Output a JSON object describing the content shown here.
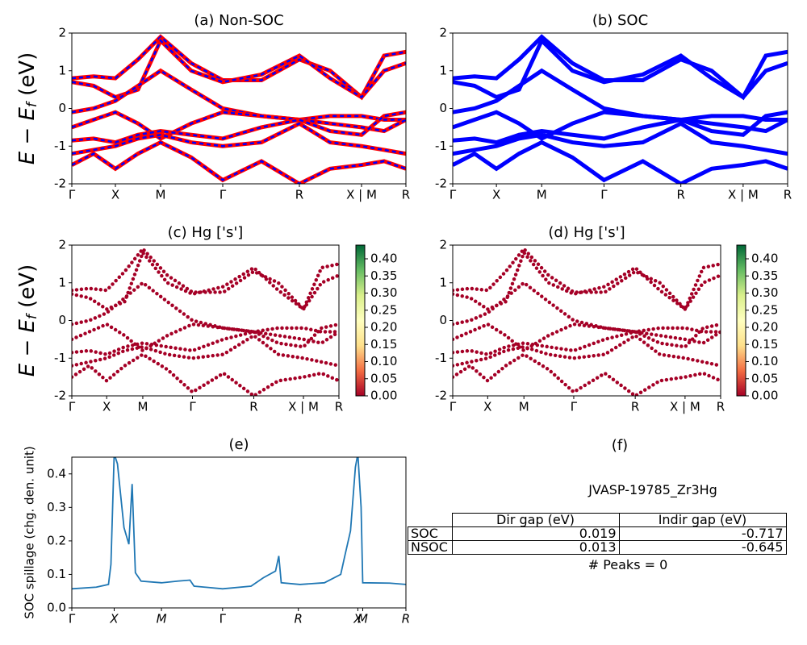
{
  "chart_data": [
    {
      "type": "band",
      "title": "(a) Non-SOC",
      "ylabel": [
        "E − E",
        "f",
        " (eV)"
      ],
      "colors": [
        "#ff0000",
        "#0000ff"
      ],
      "x": [
        0,
        0.27,
        0.54,
        0.82,
        1.1,
        1.48,
        1.87,
        2.35,
        2.82,
        3.2,
        3.59,
        3.87,
        4.14
      ],
      "bands": [
        [
          0.8,
          0.85,
          0.8,
          1.3,
          1.9,
          1.2,
          0.75,
          0.75,
          1.3,
          1.0,
          0.3,
          1.4,
          1.5
        ],
        [
          0.7,
          0.6,
          0.3,
          0.5,
          1.8,
          1.0,
          0.7,
          0.9,
          1.4,
          0.8,
          0.3,
          1.0,
          1.2
        ],
        [
          -0.1,
          0.0,
          0.2,
          0.6,
          1.0,
          0.5,
          0.0,
          -0.2,
          -0.3,
          -0.2,
          -0.2,
          -0.3,
          -0.3
        ],
        [
          -0.5,
          -0.3,
          -0.1,
          -0.4,
          -0.8,
          -0.4,
          -0.1,
          -0.2,
          -0.3,
          -0.4,
          -0.5,
          -0.6,
          -0.3
        ],
        [
          -0.85,
          -0.8,
          -0.9,
          -0.7,
          -0.6,
          -0.7,
          -0.8,
          -0.5,
          -0.3,
          -0.6,
          -0.7,
          -0.2,
          -0.1
        ],
        [
          -1.2,
          -1.1,
          -1.0,
          -0.8,
          -0.7,
          -0.9,
          -1.0,
          -0.9,
          -0.4,
          -0.9,
          -1.0,
          -1.1,
          -1.2
        ],
        [
          -1.5,
          -1.2,
          -1.6,
          -1.2,
          -0.9,
          -1.3,
          -1.9,
          -1.4,
          -2.0,
          -1.6,
          -1.5,
          -1.4,
          -1.6
        ]
      ],
      "xlim": [
        0,
        4.14
      ],
      "xticks": [
        {
          "value": 0,
          "label": "Γ"
        },
        {
          "value": 0.54,
          "label": "X"
        },
        {
          "value": 1.1,
          "label": "M"
        },
        {
          "value": 1.87,
          "label": "Γ"
        },
        {
          "value": 2.82,
          "label": "R"
        },
        {
          "value": 3.59,
          "label": "X | M"
        },
        {
          "value": 4.14,
          "label": "R"
        }
      ],
      "ylim": [
        -2,
        2
      ],
      "yticks": [
        -2,
        -1,
        0,
        1,
        2
      ]
    },
    {
      "type": "band",
      "title": "(b) SOC",
      "colors": [
        "#0000ff"
      ],
      "x": [
        0,
        0.27,
        0.54,
        0.82,
        1.1,
        1.48,
        1.87,
        2.35,
        2.82,
        3.2,
        3.59,
        3.87,
        4.14
      ],
      "bands": [
        [
          0.8,
          0.85,
          0.8,
          1.3,
          1.9,
          1.2,
          0.75,
          0.75,
          1.3,
          1.0,
          0.3,
          1.4,
          1.5
        ],
        [
          0.7,
          0.6,
          0.3,
          0.5,
          1.8,
          1.0,
          0.7,
          0.9,
          1.4,
          0.8,
          0.3,
          1.0,
          1.2
        ],
        [
          -0.1,
          0.0,
          0.2,
          0.6,
          1.0,
          0.5,
          0.0,
          -0.2,
          -0.3,
          -0.2,
          -0.2,
          -0.3,
          -0.3
        ],
        [
          -0.5,
          -0.3,
          -0.1,
          -0.4,
          -0.8,
          -0.4,
          -0.1,
          -0.2,
          -0.3,
          -0.4,
          -0.5,
          -0.6,
          -0.3
        ],
        [
          -0.85,
          -0.8,
          -0.9,
          -0.7,
          -0.6,
          -0.7,
          -0.8,
          -0.5,
          -0.3,
          -0.6,
          -0.7,
          -0.2,
          -0.1
        ],
        [
          -1.2,
          -1.1,
          -1.0,
          -0.8,
          -0.7,
          -0.9,
          -1.0,
          -0.9,
          -0.4,
          -0.9,
          -1.0,
          -1.1,
          -1.2
        ],
        [
          -1.5,
          -1.2,
          -1.6,
          -1.2,
          -0.9,
          -1.3,
          -1.9,
          -1.4,
          -2.0,
          -1.6,
          -1.5,
          -1.4,
          -1.6
        ]
      ],
      "xlim": [
        0,
        4.14
      ],
      "xticks": [
        {
          "value": 0,
          "label": "Γ"
        },
        {
          "value": 0.54,
          "label": "X"
        },
        {
          "value": 1.1,
          "label": "M"
        },
        {
          "value": 1.87,
          "label": "Γ"
        },
        {
          "value": 2.82,
          "label": "R"
        },
        {
          "value": 3.59,
          "label": "X | M"
        },
        {
          "value": 4.14,
          "label": "R"
        }
      ],
      "ylim": [
        -2,
        2
      ],
      "yticks": [
        -2,
        -1,
        0,
        1,
        2
      ]
    },
    {
      "type": "projected",
      "title": "(c)  Hg ['s']",
      "ylabel": [
        "E − E",
        "f",
        " (eV)"
      ],
      "colors": [
        "#a50026"
      ],
      "x": [
        0,
        0.27,
        0.54,
        0.82,
        1.1,
        1.48,
        1.87,
        2.35,
        2.82,
        3.2,
        3.59,
        3.87,
        4.14
      ],
      "bands": [
        [
          0.8,
          0.85,
          0.8,
          1.3,
          1.9,
          1.2,
          0.75,
          0.75,
          1.3,
          1.0,
          0.3,
          1.4,
          1.5
        ],
        [
          0.7,
          0.6,
          0.3,
          0.5,
          1.8,
          1.0,
          0.7,
          0.9,
          1.4,
          0.8,
          0.3,
          1.0,
          1.2
        ],
        [
          -0.1,
          0.0,
          0.2,
          0.6,
          1.0,
          0.5,
          0.0,
          -0.2,
          -0.3,
          -0.2,
          -0.2,
          -0.3,
          -0.3
        ],
        [
          -0.5,
          -0.3,
          -0.1,
          -0.4,
          -0.8,
          -0.4,
          -0.1,
          -0.2,
          -0.3,
          -0.4,
          -0.5,
          -0.6,
          -0.3
        ],
        [
          -0.85,
          -0.8,
          -0.9,
          -0.7,
          -0.6,
          -0.7,
          -0.8,
          -0.5,
          -0.3,
          -0.6,
          -0.7,
          -0.2,
          -0.1
        ],
        [
          -1.2,
          -1.1,
          -1.0,
          -0.8,
          -0.7,
          -0.9,
          -1.0,
          -0.9,
          -0.4,
          -0.9,
          -1.0,
          -1.1,
          -1.2
        ],
        [
          -1.5,
          -1.2,
          -1.6,
          -1.2,
          -0.9,
          -1.3,
          -1.9,
          -1.4,
          -2.0,
          -1.6,
          -1.5,
          -1.4,
          -1.6
        ]
      ],
      "xlim": [
        0,
        4.14
      ],
      "xticks": [
        {
          "value": 0,
          "label": "Γ"
        },
        {
          "value": 0.54,
          "label": "X"
        },
        {
          "value": 1.1,
          "label": "M"
        },
        {
          "value": 1.87,
          "label": "Γ"
        },
        {
          "value": 2.82,
          "label": "R"
        },
        {
          "value": 3.59,
          "label": "X | M"
        },
        {
          "value": 4.14,
          "label": "R"
        }
      ],
      "ylim": [
        -2,
        2
      ],
      "yticks": [
        -2,
        -1,
        0,
        1,
        2
      ],
      "colorbar": {
        "colors": [
          "#a50026",
          "#f46d43",
          "#fee08b",
          "#ffffbf",
          "#d9ef8b",
          "#66bd63",
          "#006837"
        ],
        "lim": [
          0,
          0.44
        ],
        "ticks": [
          {
            "value": 0,
            "label": "0.00"
          },
          {
            "value": 0.05,
            "label": "0.05"
          },
          {
            "value": 0.1,
            "label": "0.10"
          },
          {
            "value": 0.15,
            "label": "0.15"
          },
          {
            "value": 0.2,
            "label": "0.20"
          },
          {
            "value": 0.25,
            "label": "0.25"
          },
          {
            "value": 0.3,
            "label": "0.30"
          },
          {
            "value": 0.35,
            "label": "0.35"
          },
          {
            "value": 0.4,
            "label": "0.40"
          }
        ]
      }
    },
    {
      "type": "projected",
      "title": "(d) Hg ['s']",
      "colors": [
        "#a50026"
      ],
      "x": [
        0,
        0.27,
        0.54,
        0.82,
        1.1,
        1.48,
        1.87,
        2.35,
        2.82,
        3.2,
        3.59,
        3.87,
        4.14
      ],
      "bands": [
        [
          0.8,
          0.85,
          0.8,
          1.3,
          1.9,
          1.2,
          0.75,
          0.75,
          1.3,
          1.0,
          0.3,
          1.4,
          1.5
        ],
        [
          0.7,
          0.6,
          0.3,
          0.5,
          1.8,
          1.0,
          0.7,
          0.9,
          1.4,
          0.8,
          0.3,
          1.0,
          1.2
        ],
        [
          -0.1,
          0.0,
          0.2,
          0.6,
          1.0,
          0.5,
          0.0,
          -0.2,
          -0.3,
          -0.2,
          -0.2,
          -0.3,
          -0.3
        ],
        [
          -0.5,
          -0.3,
          -0.1,
          -0.4,
          -0.8,
          -0.4,
          -0.1,
          -0.2,
          -0.3,
          -0.4,
          -0.5,
          -0.6,
          -0.3
        ],
        [
          -0.85,
          -0.8,
          -0.9,
          -0.7,
          -0.6,
          -0.7,
          -0.8,
          -0.5,
          -0.3,
          -0.6,
          -0.7,
          -0.2,
          -0.1
        ],
        [
          -1.2,
          -1.1,
          -1.0,
          -0.8,
          -0.7,
          -0.9,
          -1.0,
          -0.9,
          -0.4,
          -0.9,
          -1.0,
          -1.1,
          -1.2
        ],
        [
          -1.5,
          -1.2,
          -1.6,
          -1.2,
          -0.9,
          -1.3,
          -1.9,
          -1.4,
          -2.0,
          -1.6,
          -1.5,
          -1.4,
          -1.6
        ]
      ],
      "xlim": [
        0,
        4.14
      ],
      "xticks": [
        {
          "value": 0,
          "label": "Γ"
        },
        {
          "value": 0.54,
          "label": "X"
        },
        {
          "value": 1.1,
          "label": "M"
        },
        {
          "value": 1.87,
          "label": "Γ"
        },
        {
          "value": 2.82,
          "label": "R"
        },
        {
          "value": 3.59,
          "label": "X | M"
        },
        {
          "value": 4.14,
          "label": "R"
        }
      ],
      "ylim": [
        -2,
        2
      ],
      "yticks": [
        -2,
        -1,
        0,
        1,
        2
      ],
      "colorbar": {
        "colors": [
          "#a50026",
          "#f46d43",
          "#fee08b",
          "#ffffbf",
          "#d9ef8b",
          "#66bd63",
          "#006837"
        ],
        "lim": [
          0,
          0.44
        ],
        "ticks": [
          {
            "value": 0,
            "label": "0.00"
          },
          {
            "value": 0.05,
            "label": "0.05"
          },
          {
            "value": 0.1,
            "label": "0.10"
          },
          {
            "value": 0.15,
            "label": "0.15"
          },
          {
            "value": 0.2,
            "label": "0.20"
          },
          {
            "value": 0.25,
            "label": "0.25"
          },
          {
            "value": 0.3,
            "label": "0.30"
          },
          {
            "value": 0.35,
            "label": "0.35"
          },
          {
            "value": 0.4,
            "label": "0.40"
          }
        ]
      }
    },
    {
      "type": "line",
      "title": "(e)",
      "ylabel": "SOC spillage (chg. den. unit)",
      "color": "#1f77b4",
      "x": [
        0,
        0.3,
        0.45,
        0.48,
        0.52,
        0.56,
        0.64,
        0.7,
        0.74,
        0.78,
        0.85,
        1.1,
        1.3,
        1.45,
        1.5,
        1.85,
        2.2,
        2.35,
        2.5,
        2.54,
        2.57,
        2.8,
        3.1,
        3.3,
        3.35,
        3.42,
        3.48,
        3.51,
        3.55,
        3.57,
        3.9,
        4.1
      ],
      "values": [
        0.057,
        0.062,
        0.07,
        0.13,
        0.46,
        0.43,
        0.24,
        0.19,
        0.37,
        0.105,
        0.08,
        0.075,
        0.08,
        0.083,
        0.065,
        0.057,
        0.065,
        0.09,
        0.11,
        0.155,
        0.075,
        0.07,
        0.075,
        0.1,
        0.155,
        0.23,
        0.42,
        0.46,
        0.3,
        0.075,
        0.074,
        0.07
      ],
      "xlim": [
        0,
        4.1
      ],
      "xticks": [
        {
          "value": 0,
          "label": "Γ"
        },
        {
          "value": 0.52,
          "label": "X"
        },
        {
          "value": 1.1,
          "label": "M"
        },
        {
          "value": 1.85,
          "label": "Γ"
        },
        {
          "value": 2.78,
          "label": "R"
        },
        {
          "value": 3.51,
          "label": "X"
        },
        {
          "value": 3.57,
          "label": "M"
        },
        {
          "value": 4.1,
          "label": "R"
        }
      ],
      "ylim": [
        0,
        0.45
      ],
      "yticks": [
        {
          "value": 0,
          "label": "0.0"
        },
        {
          "value": 0.1,
          "label": "0.1"
        },
        {
          "value": 0.2,
          "label": "0.2"
        },
        {
          "value": 0.3,
          "label": "0.3"
        },
        {
          "value": 0.4,
          "label": "0.4"
        }
      ]
    }
  ],
  "table_panel": {
    "title": "(f)",
    "name": "JVASP-19785_Zr3Hg",
    "columns": [
      "Dir gap (eV)",
      "Indir gap (eV)"
    ],
    "rows": [
      [
        "SOC",
        "0.019",
        "-0.717"
      ],
      [
        "NSOC",
        "0.013",
        "-0.645"
      ]
    ],
    "footer": "# Peaks = 0"
  }
}
